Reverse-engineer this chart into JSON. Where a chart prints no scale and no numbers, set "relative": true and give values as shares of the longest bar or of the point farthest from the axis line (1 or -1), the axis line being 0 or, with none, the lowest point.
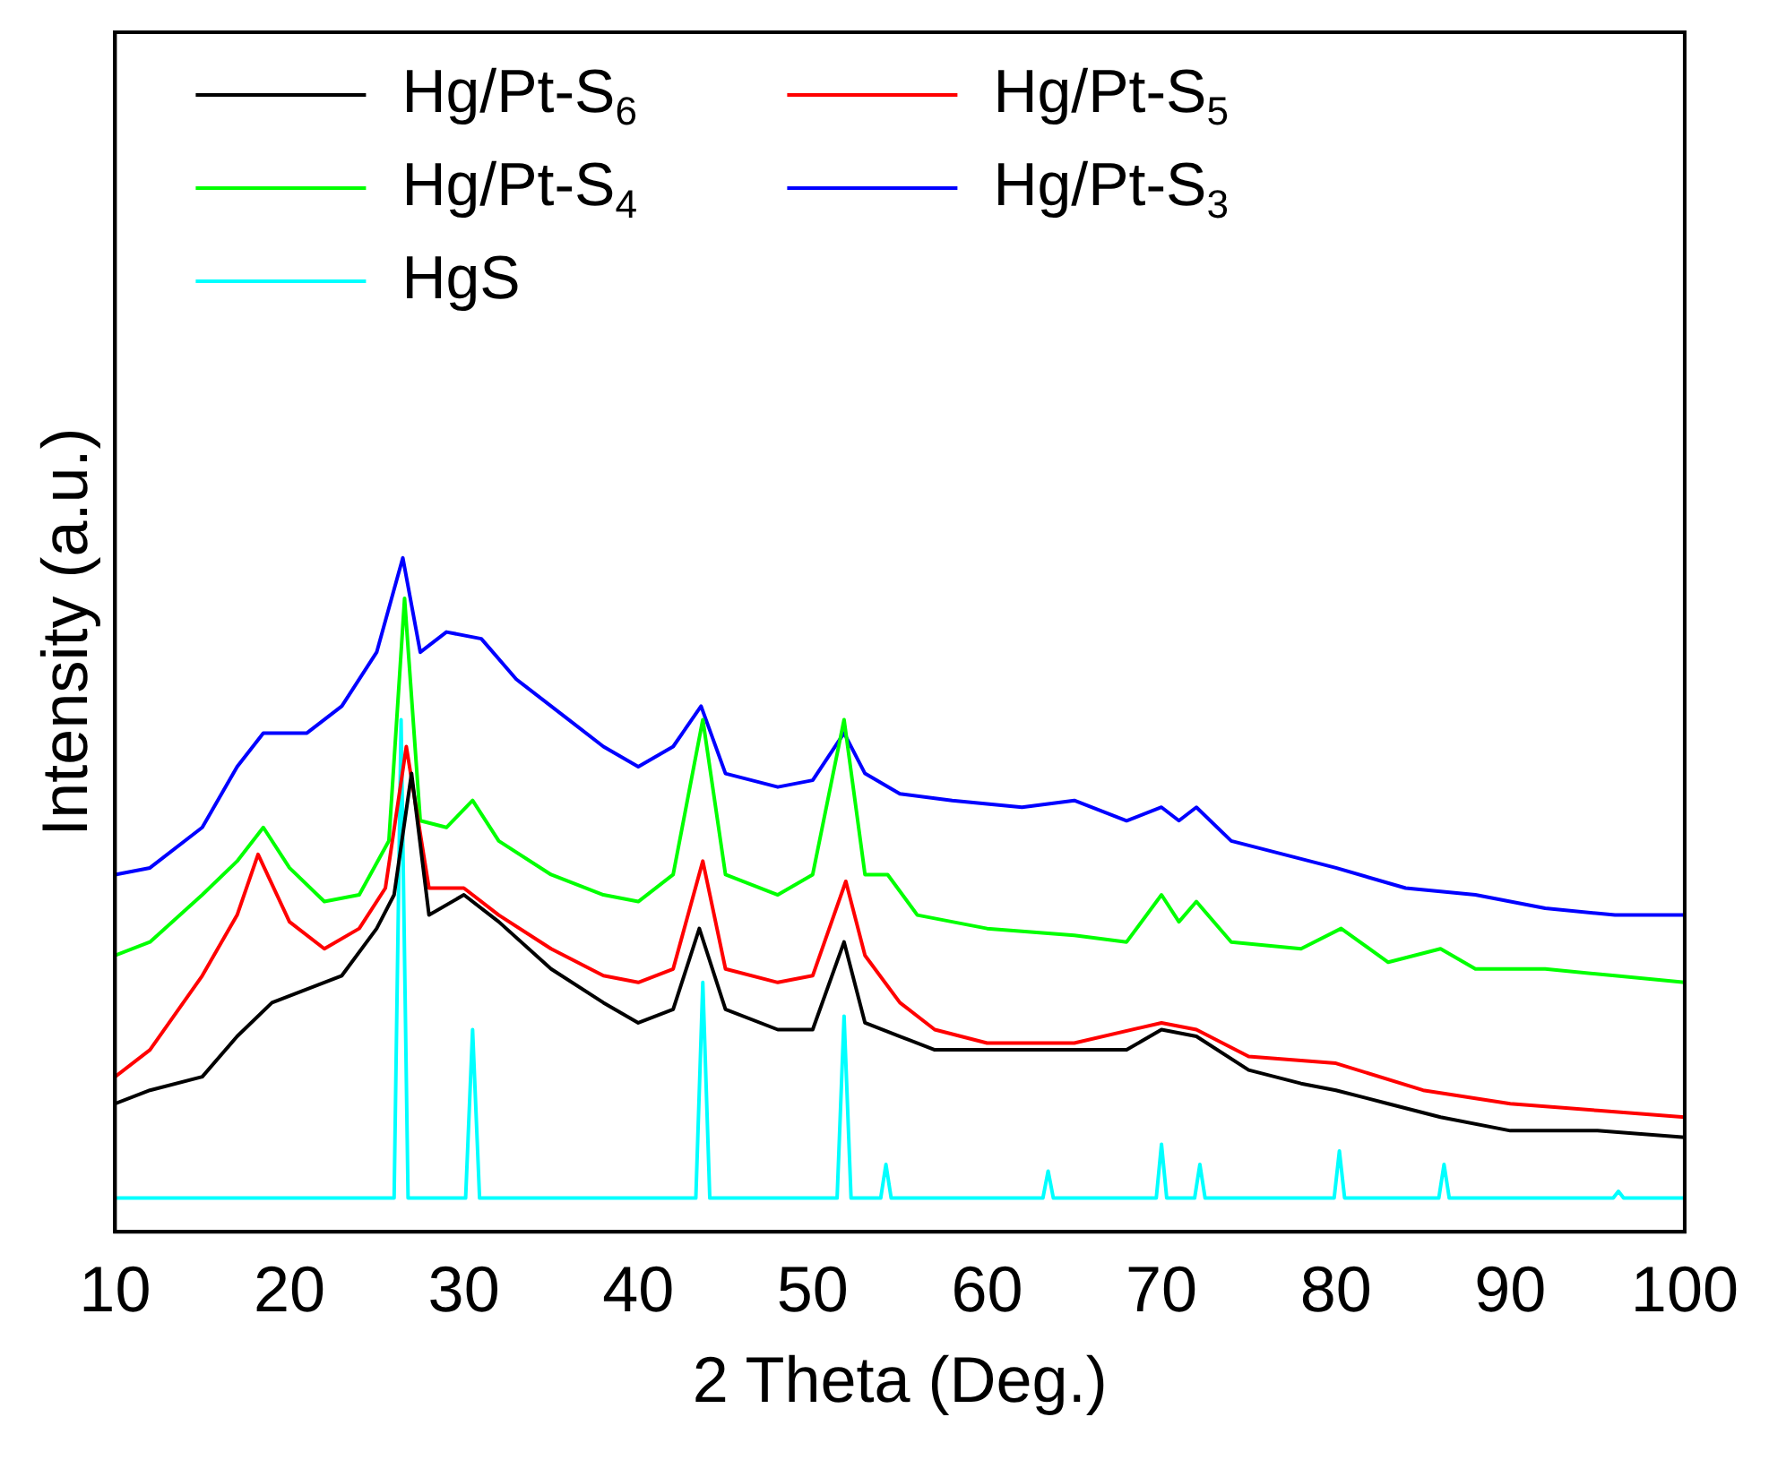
{
  "chart_data": {
    "type": "line",
    "xlabel": "2 Theta (Deg.)",
    "ylabel": "Intensity (a.u.)",
    "relative": true,
    "xlim": [
      10,
      100
    ],
    "xticks": [
      10,
      20,
      30,
      40,
      50,
      60,
      70,
      80,
      90,
      100
    ],
    "tick_labels": "x",
    "legend": "top left",
    "marker": "none",
    "line_style": "solid",
    "grid": false,
    "series": [
      {
        "name": "Hg/Pt-S$_{6}$",
        "color": "#000000",
        "x": [
          10,
          12,
          15,
          17,
          19,
          21,
          23,
          25,
          26,
          27,
          28,
          30,
          32,
          35,
          38,
          40,
          42,
          43.5,
          45,
          48,
          50,
          51.8,
          53,
          55,
          57,
          60,
          63,
          66,
          68,
          70,
          72,
          75,
          78,
          80,
          83,
          86,
          90,
          95,
          100
        ],
        "values": [
          0.19,
          0.21,
          0.23,
          0.29,
          0.34,
          0.36,
          0.38,
          0.45,
          0.5,
          0.68,
          0.47,
          0.5,
          0.46,
          0.39,
          0.34,
          0.31,
          0.33,
          0.45,
          0.33,
          0.3,
          0.3,
          0.43,
          0.31,
          0.29,
          0.27,
          0.27,
          0.27,
          0.27,
          0.27,
          0.3,
          0.29,
          0.24,
          0.22,
          0.21,
          0.19,
          0.17,
          0.15,
          0.15,
          0.14
        ]
      },
      {
        "name": "Hg/Pt-S$_{5}$",
        "color": "#ff0000",
        "x": [
          10,
          12,
          15,
          17,
          18.2,
          20,
          22,
          24,
          25.5,
          26.7,
          28,
          30,
          32,
          35,
          38,
          40,
          42,
          43.7,
          45,
          48,
          50,
          51.9,
          53,
          55,
          57,
          60,
          65,
          70,
          72,
          75,
          80,
          85,
          90,
          95,
          100
        ],
        "values": [
          0.23,
          0.27,
          0.38,
          0.47,
          0.56,
          0.46,
          0.42,
          0.45,
          0.51,
          0.72,
          0.51,
          0.51,
          0.47,
          0.42,
          0.38,
          0.37,
          0.39,
          0.55,
          0.39,
          0.37,
          0.38,
          0.52,
          0.41,
          0.34,
          0.3,
          0.28,
          0.28,
          0.31,
          0.3,
          0.26,
          0.25,
          0.21,
          0.19,
          0.18,
          0.17
        ]
      },
      {
        "name": "Hg/Pt-S$_{4}$",
        "color": "#00ff00",
        "x": [
          10,
          12,
          15,
          17,
          18.5,
          20,
          22,
          24,
          25.7,
          26.6,
          27.5,
          29,
          30.5,
          32,
          35,
          38,
          40,
          42,
          43.7,
          45,
          48,
          50,
          51.8,
          53,
          54.3,
          56,
          60,
          65,
          68,
          70,
          71,
          72,
          74,
          78,
          80.3,
          83,
          86,
          88,
          92,
          96,
          100
        ],
        "values": [
          0.41,
          0.43,
          0.5,
          0.55,
          0.6,
          0.54,
          0.49,
          0.5,
          0.58,
          0.94,
          0.61,
          0.6,
          0.64,
          0.58,
          0.53,
          0.5,
          0.49,
          0.53,
          0.76,
          0.53,
          0.5,
          0.53,
          0.76,
          0.53,
          0.53,
          0.47,
          0.45,
          0.44,
          0.43,
          0.5,
          0.46,
          0.49,
          0.43,
          0.42,
          0.45,
          0.4,
          0.42,
          0.39,
          0.39,
          0.38,
          0.37
        ]
      },
      {
        "name": "Hg/Pt-S$_{3}$",
        "color": "#0000ff",
        "x": [
          10,
          12,
          15,
          17,
          18.5,
          21,
          23,
          25,
          26.5,
          27.5,
          29,
          31,
          33,
          36,
          38,
          40,
          42,
          43.6,
          45,
          48,
          50,
          51.8,
          53,
          55,
          58,
          62,
          65,
          68,
          70,
          71,
          72,
          74,
          77,
          80,
          84,
          88,
          92,
          96,
          100
        ],
        "values": [
          0.53,
          0.54,
          0.6,
          0.69,
          0.74,
          0.74,
          0.78,
          0.86,
          1,
          0.86,
          0.89,
          0.88,
          0.82,
          0.76,
          0.72,
          0.69,
          0.72,
          0.78,
          0.68,
          0.66,
          0.67,
          0.74,
          0.68,
          0.65,
          0.64,
          0.63,
          0.64,
          0.61,
          0.63,
          0.61,
          0.63,
          0.58,
          0.56,
          0.54,
          0.51,
          0.5,
          0.48,
          0.47,
          0.47
        ]
      },
      {
        "name": "HgS",
        "color": "#00ffff",
        "x": [
          10,
          26,
          26.4,
          26.8,
          30.1,
          30.5,
          30.9,
          43.3,
          43.7,
          44.1,
          51.4,
          51.8,
          52.2,
          53.9,
          54.2,
          54.5,
          63.2,
          63.5,
          63.8,
          69.7,
          70,
          70.3,
          71.9,
          72.2,
          72.5,
          79.9,
          80.2,
          80.5,
          85.9,
          86.2,
          86.5,
          95.9,
          96.2,
          96.5,
          100
        ],
        "values": [
          0.05,
          0.05,
          0.76,
          0.05,
          0.05,
          0.3,
          0.05,
          0.05,
          0.37,
          0.05,
          0.05,
          0.32,
          0.05,
          0.05,
          0.1,
          0.05,
          0.05,
          0.09,
          0.05,
          0.05,
          0.13,
          0.05,
          0.05,
          0.1,
          0.05,
          0.05,
          0.12,
          0.05,
          0.05,
          0.1,
          0.05,
          0.05,
          0.06,
          0.05,
          0.05
        ]
      }
    ]
  }
}
